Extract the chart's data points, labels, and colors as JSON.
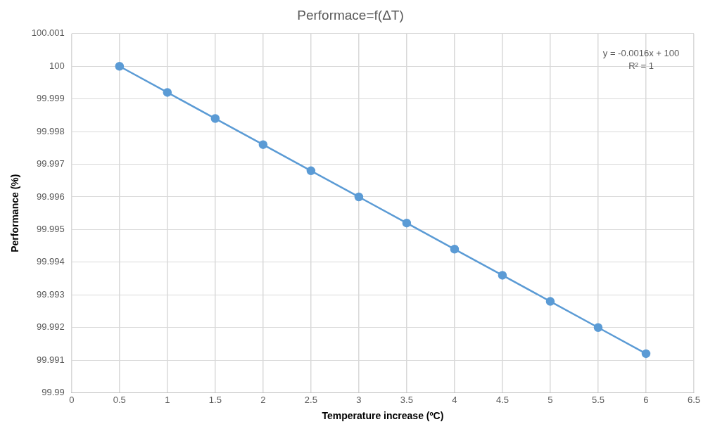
{
  "chart_data": {
    "type": "scatter",
    "title": "Performace=f(ΔT)",
    "xlabel": "Temperature increase (ºC)",
    "ylabel": "Performance (%)",
    "x": [
      0.5,
      1,
      1.5,
      2,
      2.5,
      3,
      3.5,
      4,
      4.5,
      5,
      5.5,
      6
    ],
    "series": [
      {
        "type": "line",
        "color": "#5b9bd5",
        "values": [
          100,
          99.9992,
          99.9984,
          99.9976,
          99.9968,
          99.996,
          99.9952,
          99.9944,
          99.9936,
          99.9928,
          99.992,
          99.9912
        ]
      }
    ],
    "xlim": [
      0,
      6.5
    ],
    "xticks": [
      0,
      0.5,
      1,
      1.5,
      2,
      2.5,
      3,
      3.5,
      4,
      4.5,
      5,
      5.5,
      6,
      6.5
    ],
    "ylim": [
      99.99,
      100.001
    ],
    "yticks": [
      99.99,
      99.991,
      99.992,
      99.993,
      99.994,
      99.995,
      99.996,
      99.997,
      99.998,
      99.999,
      100,
      100.001
    ],
    "grid": true,
    "legend": false,
    "marker": "circle",
    "line_style": "solid",
    "annotations": [
      "y = -0.0016x + 100",
      "R² = 1"
    ]
  }
}
